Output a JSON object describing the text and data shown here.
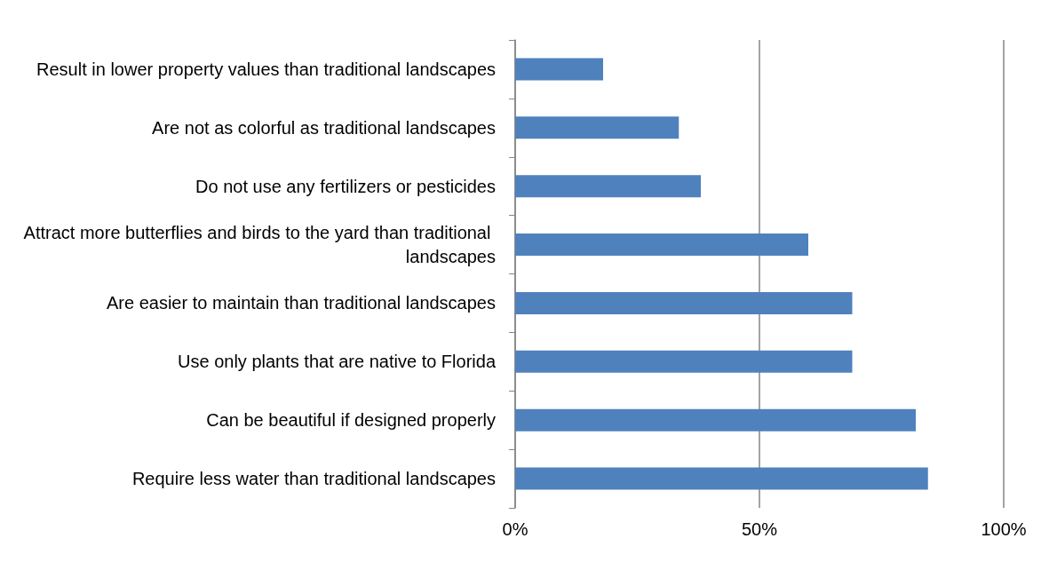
{
  "chart_data": {
    "type": "bar",
    "orientation": "horizontal",
    "categories": [
      "Result in lower property values than traditional landscapes",
      "Are not as colorful as traditional landscapes",
      "Do not use any fertilizers or pesticides",
      "Attract more butterflies and birds to the yard than traditional landscapes",
      "Are easier to maintain than traditional landscapes",
      "Use only plants that are native to Florida",
      "Can be beautiful if designed properly",
      "Require less water than traditional landscapes"
    ],
    "values": [
      18,
      33.5,
      38,
      60,
      69,
      69,
      82,
      84.5
    ],
    "color": "#4f81bd",
    "xlim": [
      0,
      100
    ],
    "xticks": [
      {
        "value": 0,
        "label": "0%"
      },
      {
        "value": 50,
        "label": "50%"
      },
      {
        "value": 100,
        "label": "100%"
      }
    ],
    "grid": "x"
  }
}
